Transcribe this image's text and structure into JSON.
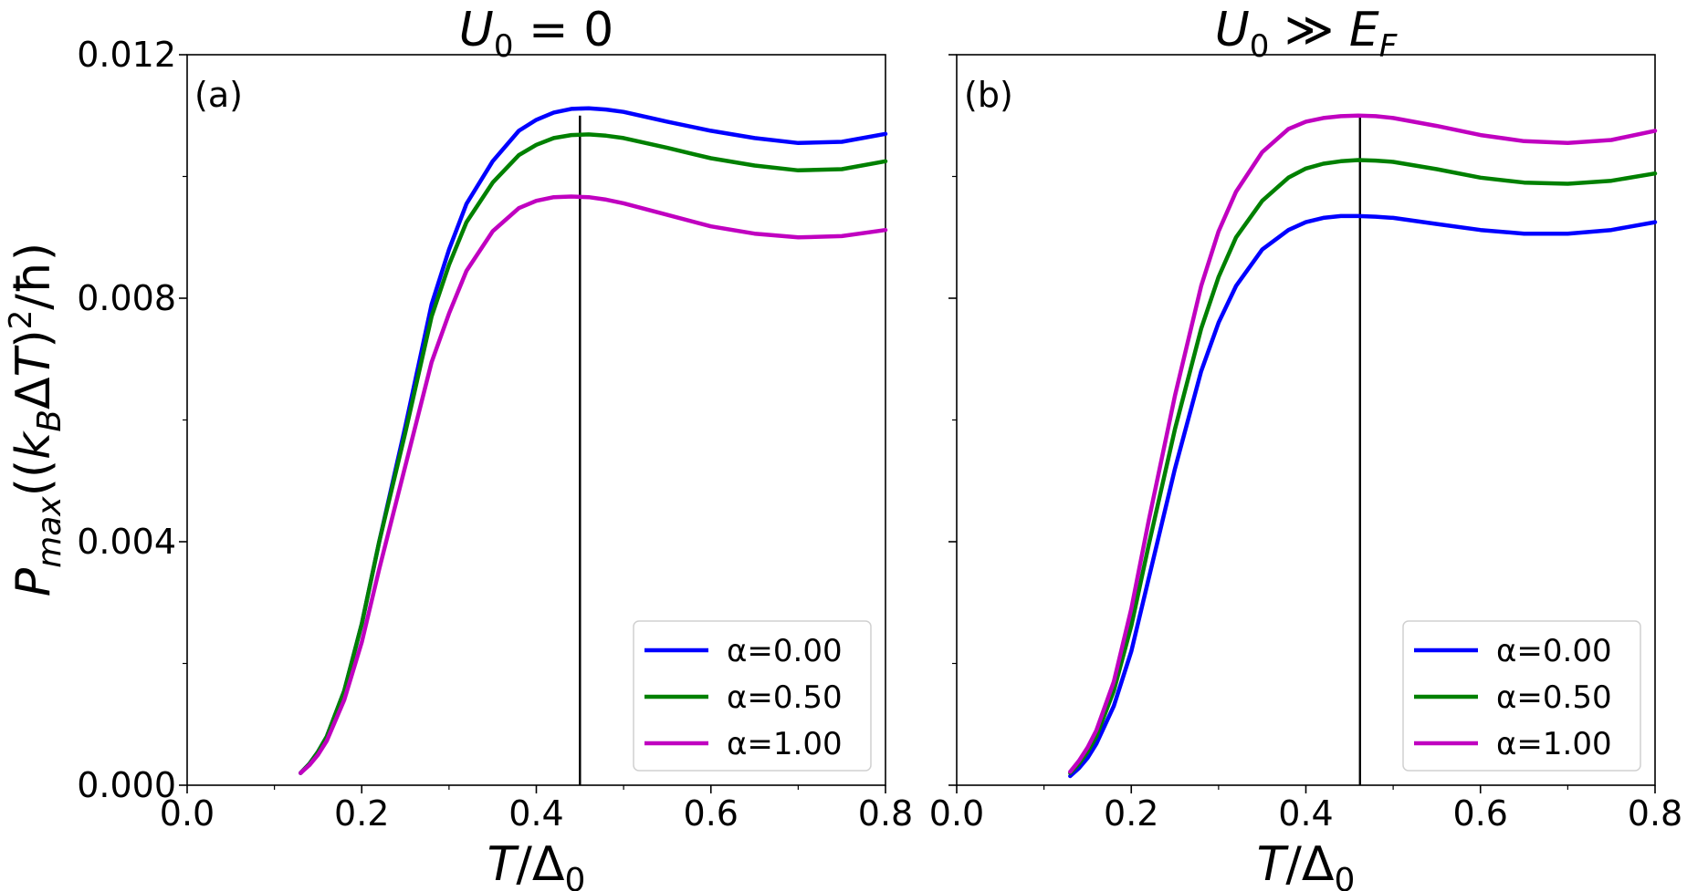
{
  "chart_data": [
    {
      "type": "line",
      "panel_label": "(a)",
      "title": "U₀ = 0",
      "title_math": {
        "base": "U",
        "sub": "0",
        "rest": " = 0"
      },
      "xlabel": "T/Δ₀",
      "ylabel": "P_max((k_B ΔT)²/ħ)",
      "xlim": [
        0.0,
        0.8
      ],
      "ylim": [
        0.0,
        0.012
      ],
      "xticks": [
        "0.0",
        "0.2",
        "0.4",
        "0.6",
        "0.8"
      ],
      "yticks": [
        "0.000",
        "0.004",
        "0.008",
        "0.012"
      ],
      "legend_position": "lower-right",
      "vline_x": 0.45,
      "series": [
        {
          "name": "α=0.00",
          "color": "#0000ff",
          "x": [
            0.13,
            0.14,
            0.15,
            0.16,
            0.18,
            0.2,
            0.22,
            0.25,
            0.28,
            0.3,
            0.32,
            0.35,
            0.38,
            0.4,
            0.42,
            0.44,
            0.46,
            0.48,
            0.5,
            0.55,
            0.6,
            0.65,
            0.7,
            0.75,
            0.8
          ],
          "y": [
            0.0002,
            0.00035,
            0.00055,
            0.0008,
            0.00155,
            0.00265,
            0.004,
            0.0059,
            0.0079,
            0.0088,
            0.00955,
            0.01025,
            0.01075,
            0.01093,
            0.01105,
            0.01111,
            0.01112,
            0.0111,
            0.01106,
            0.0109,
            0.01075,
            0.01063,
            0.01055,
            0.01057,
            0.0107
          ]
        },
        {
          "name": "α=0.50",
          "color": "#008000",
          "x": [
            0.13,
            0.14,
            0.15,
            0.16,
            0.18,
            0.2,
            0.22,
            0.25,
            0.28,
            0.3,
            0.32,
            0.35,
            0.38,
            0.4,
            0.42,
            0.44,
            0.46,
            0.48,
            0.5,
            0.55,
            0.6,
            0.65,
            0.7,
            0.75,
            0.8
          ],
          "y": [
            0.0002,
            0.00035,
            0.00055,
            0.0008,
            0.00155,
            0.00265,
            0.004,
            0.0058,
            0.0077,
            0.00855,
            0.00925,
            0.0099,
            0.01035,
            0.01052,
            0.01063,
            0.01068,
            0.01069,
            0.01067,
            0.01063,
            0.01047,
            0.0103,
            0.01018,
            0.0101,
            0.01012,
            0.01025
          ]
        },
        {
          "name": "α=1.00",
          "color": "#c000c0",
          "x": [
            0.13,
            0.14,
            0.15,
            0.16,
            0.18,
            0.2,
            0.22,
            0.25,
            0.28,
            0.3,
            0.32,
            0.35,
            0.38,
            0.4,
            0.42,
            0.44,
            0.46,
            0.48,
            0.5,
            0.55,
            0.6,
            0.65,
            0.7,
            0.75,
            0.8
          ],
          "y": [
            0.0002,
            0.00033,
            0.0005,
            0.00073,
            0.0014,
            0.00235,
            0.00355,
            0.00525,
            0.00695,
            0.00775,
            0.00845,
            0.0091,
            0.00948,
            0.0096,
            0.00966,
            0.00967,
            0.00966,
            0.00962,
            0.00956,
            0.00937,
            0.00918,
            0.00906,
            0.009,
            0.00902,
            0.00912
          ]
        }
      ]
    },
    {
      "type": "line",
      "panel_label": "(b)",
      "title": "U₀ ≫ E_F",
      "title_math": {
        "base": "U",
        "sub": "0",
        "rel": " ≫ ",
        "base2": "E",
        "sub2": "F"
      },
      "xlabel": "T/Δ₀",
      "ylabel": "",
      "xlim": [
        0.0,
        0.8
      ],
      "ylim": [
        0.0,
        0.012
      ],
      "xticks": [
        "0.0",
        "0.2",
        "0.4",
        "0.6",
        "0.8"
      ],
      "yticks": [],
      "legend_position": "lower-right",
      "vline_x": 0.462,
      "series": [
        {
          "name": "α=0.00",
          "color": "#0000ff",
          "x": [
            0.13,
            0.14,
            0.15,
            0.16,
            0.18,
            0.2,
            0.22,
            0.25,
            0.28,
            0.3,
            0.32,
            0.35,
            0.38,
            0.4,
            0.42,
            0.44,
            0.46,
            0.48,
            0.5,
            0.55,
            0.6,
            0.65,
            0.7,
            0.75,
            0.8
          ],
          "y": [
            0.00015,
            0.00028,
            0.00045,
            0.00068,
            0.0013,
            0.0022,
            0.0034,
            0.0052,
            0.0068,
            0.0076,
            0.0082,
            0.0088,
            0.00912,
            0.00925,
            0.00932,
            0.00935,
            0.00935,
            0.00934,
            0.00932,
            0.00922,
            0.00912,
            0.00906,
            0.00906,
            0.00912,
            0.00925
          ]
        },
        {
          "name": "α=0.50",
          "color": "#008000",
          "x": [
            0.13,
            0.14,
            0.15,
            0.16,
            0.18,
            0.2,
            0.22,
            0.25,
            0.28,
            0.3,
            0.32,
            0.35,
            0.38,
            0.4,
            0.42,
            0.44,
            0.46,
            0.48,
            0.5,
            0.55,
            0.6,
            0.65,
            0.7,
            0.75,
            0.8
          ],
          "y": [
            0.0002,
            0.00035,
            0.00055,
            0.0008,
            0.00155,
            0.00262,
            0.00395,
            0.00585,
            0.0075,
            0.00835,
            0.009,
            0.0096,
            0.00998,
            0.01013,
            0.01021,
            0.01025,
            0.01027,
            0.01026,
            0.01024,
            0.01012,
            0.00998,
            0.0099,
            0.00988,
            0.00993,
            0.01005
          ]
        },
        {
          "name": "α=1.00",
          "color": "#c000c0",
          "x": [
            0.13,
            0.14,
            0.15,
            0.16,
            0.18,
            0.2,
            0.22,
            0.25,
            0.28,
            0.3,
            0.32,
            0.35,
            0.38,
            0.4,
            0.42,
            0.44,
            0.46,
            0.48,
            0.5,
            0.55,
            0.6,
            0.65,
            0.7,
            0.75,
            0.8
          ],
          "y": [
            0.00022,
            0.0004,
            0.00062,
            0.0009,
            0.0017,
            0.0029,
            0.00435,
            0.0064,
            0.0082,
            0.0091,
            0.00975,
            0.0104,
            0.01078,
            0.0109,
            0.01096,
            0.01099,
            0.011,
            0.01099,
            0.01096,
            0.01083,
            0.01068,
            0.01058,
            0.01055,
            0.0106,
            0.01075
          ]
        }
      ]
    }
  ]
}
